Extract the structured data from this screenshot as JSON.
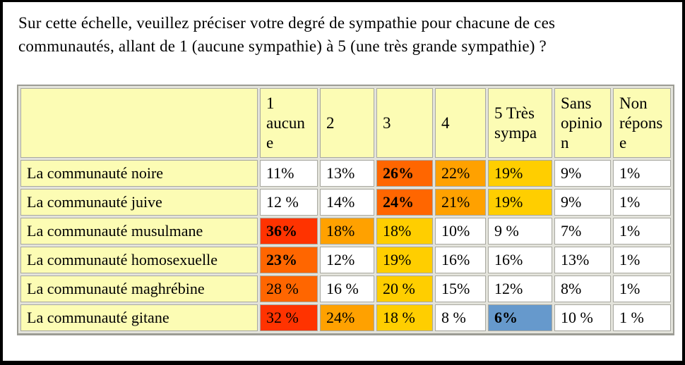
{
  "page": {
    "title": "Sur cette échelle, veuillez préciser votre degré de sympathie pour chacune de ces communautés, allant de 1 (aucune sympathie) à 5 (une très grande sympathie) ?"
  },
  "colors": {
    "white": "#ffffff",
    "paleYellow": "#fcfcb4",
    "red": "#ff3300",
    "orangeRed": "#ff6600",
    "orange": "#ffa100",
    "gold": "#ffce00",
    "blue": "#6699cc"
  },
  "table": {
    "columns": [
      "",
      "1 aucune",
      "2",
      "3",
      "4",
      "5 Très sympa",
      "Sans opinion",
      "Non réponse"
    ],
    "rows": [
      {
        "label": "La communauté noire",
        "cells": [
          {
            "v": "11%",
            "c": "white"
          },
          {
            "v": "13%",
            "c": "white"
          },
          {
            "v": "26%",
            "c": "orangeRed",
            "b": true
          },
          {
            "v": "22%",
            "c": "orange"
          },
          {
            "v": "19%",
            "c": "gold"
          },
          {
            "v": "9%",
            "c": "white"
          },
          {
            "v": "1%",
            "c": "white"
          }
        ]
      },
      {
        "label": "La communauté juive",
        "cells": [
          {
            "v": "12 %",
            "c": "white"
          },
          {
            "v": "14%",
            "c": "white"
          },
          {
            "v": "24%",
            "c": "orangeRed",
            "b": true
          },
          {
            "v": "21%",
            "c": "orange"
          },
          {
            "v": "19%",
            "c": "gold"
          },
          {
            "v": "9%",
            "c": "white"
          },
          {
            "v": "1%",
            "c": "white"
          }
        ]
      },
      {
        "label": "La communauté musulmane",
        "cells": [
          {
            "v": "36%",
            "c": "red",
            "b": true
          },
          {
            "v": "18%",
            "c": "orange"
          },
          {
            "v": "18%",
            "c": "gold"
          },
          {
            "v": "10%",
            "c": "white"
          },
          {
            "v": "9 %",
            "c": "white"
          },
          {
            "v": "7%",
            "c": "white"
          },
          {
            "v": "1%",
            "c": "white"
          }
        ]
      },
      {
        "label": "La communauté homosexuelle",
        "cells": [
          {
            "v": "23%",
            "c": "orangeRed",
            "b": true
          },
          {
            "v": "12%",
            "c": "white"
          },
          {
            "v": "19%",
            "c": "gold"
          },
          {
            "v": "16%",
            "c": "white"
          },
          {
            "v": "16%",
            "c": "white"
          },
          {
            "v": "13%",
            "c": "white"
          },
          {
            "v": "1%",
            "c": "white"
          }
        ]
      },
      {
        "label": "La communauté maghrébine",
        "cells": [
          {
            "v": "28 %",
            "c": "orangeRed"
          },
          {
            "v": "16 %",
            "c": "white"
          },
          {
            "v": "20 %",
            "c": "gold"
          },
          {
            "v": "15%",
            "c": "white"
          },
          {
            "v": "12%",
            "c": "white"
          },
          {
            "v": "8%",
            "c": "white"
          },
          {
            "v": "1%",
            "c": "white"
          }
        ]
      },
      {
        "label": "La communauté gitane",
        "cells": [
          {
            "v": "32 %",
            "c": "red"
          },
          {
            "v": "24%",
            "c": "orange"
          },
          {
            "v": "18 %",
            "c": "gold"
          },
          {
            "v": "8 %",
            "c": "white"
          },
          {
            "v": "6%",
            "c": "blue",
            "b": true
          },
          {
            "v": "10 %",
            "c": "white"
          },
          {
            "v": "1 %",
            "c": "white"
          }
        ]
      }
    ]
  }
}
